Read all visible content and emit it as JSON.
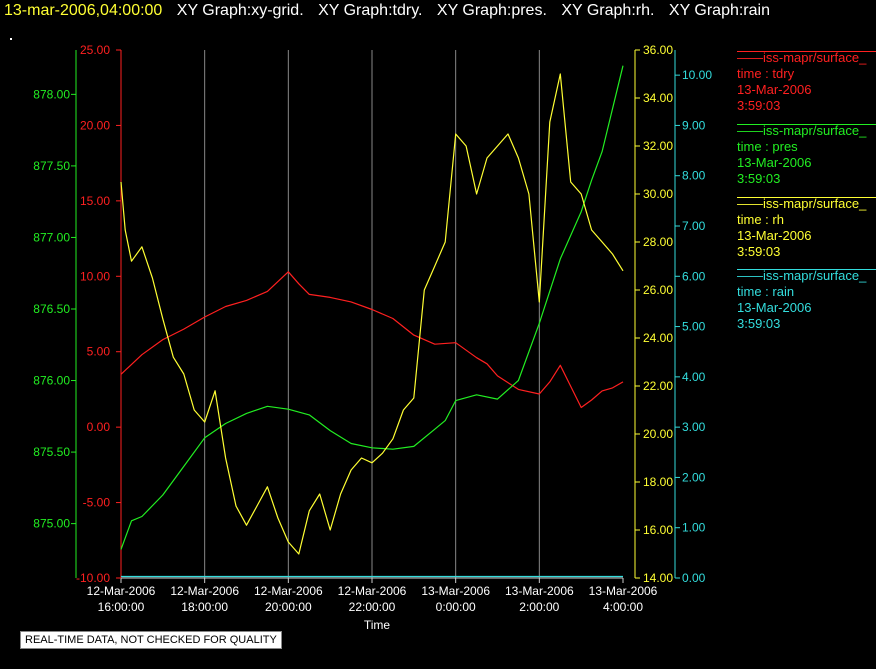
{
  "header": {
    "timestamp": "13-mar-2006,04:00:00",
    "graphs": [
      "XY Graph:xy-grid.",
      "XY Graph:tdry.",
      "XY Graph:pres.",
      "XY Graph:rh.",
      "XY Graph:rain"
    ]
  },
  "legend": [
    {
      "name": "iss-mapr/surface_",
      "var": "time : tdry",
      "date": "13-Mar-2006",
      "time": "3:59:03",
      "color": "#ff2020"
    },
    {
      "name": "iss-mapr/surface_",
      "var": "time : pres",
      "date": "13-Mar-2006",
      "time": "3:59:03",
      "color": "#22ee22"
    },
    {
      "name": "iss-mapr/surface_",
      "var": "time : rh",
      "date": "13-Mar-2006",
      "time": "3:59:03",
      "color": "#ffff33"
    },
    {
      "name": "iss-mapr/surface_",
      "var": "time : rain",
      "date": "13-Mar-2006",
      "time": "3:59:03",
      "color": "#33dddd"
    }
  ],
  "quality_note": "REAL-TIME DATA, NOT CHECKED FOR QUALITY",
  "chart_data": {
    "type": "line",
    "xlabel": "Time",
    "x_ticks": [
      {
        "date": "12-Mar-2006",
        "time": "16:00:00"
      },
      {
        "date": "12-Mar-2006",
        "time": "18:00:00"
      },
      {
        "date": "12-Mar-2006",
        "time": "20:00:00"
      },
      {
        "date": "12-Mar-2006",
        "time": "22:00:00"
      },
      {
        "date": "13-Mar-2006",
        "time": "0:00:00"
      },
      {
        "date": "13-Mar-2006",
        "time": "2:00:00"
      },
      {
        "date": "13-Mar-2006",
        "time": "4:00:00"
      }
    ],
    "xlim_hours": [
      0,
      12
    ],
    "grid": "vertical",
    "axes": {
      "tdry": {
        "color": "#ff2020",
        "ylim": [
          -10,
          25
        ],
        "ticks": [
          "-10.00",
          "-5.00",
          "0.00",
          "5.00",
          "10.00",
          "15.00",
          "20.00",
          "25.00"
        ]
      },
      "pres": {
        "color": "#22ee22",
        "ylim": [
          874.62,
          878.31
        ],
        "ticks": [
          "875.00",
          "875.50",
          "876.00",
          "876.50",
          "877.00",
          "877.50",
          "878.00"
        ]
      },
      "rh": {
        "color": "#ffff33",
        "ylim": [
          14,
          36
        ],
        "ticks": [
          "14.00",
          "16.00",
          "18.00",
          "20.00",
          "22.00",
          "24.00",
          "26.00",
          "28.00",
          "30.00",
          "32.00",
          "34.00",
          "36.00"
        ]
      },
      "rain": {
        "color": "#33dddd",
        "ylim": [
          0,
          10.5
        ],
        "ticks": [
          "0.00",
          "1.00",
          "2.00",
          "3.00",
          "4.00",
          "5.00",
          "6.00",
          "7.00",
          "8.00",
          "9.00",
          "10.00"
        ]
      }
    },
    "series": [
      {
        "name": "tdry",
        "axis": "tdry",
        "x": [
          0,
          0.5,
          1,
          1.5,
          2,
          2.5,
          3,
          3.5,
          4,
          4.25,
          4.5,
          5,
          5.5,
          6,
          6.5,
          7,
          7.5,
          8,
          8.5,
          8.75,
          9,
          9.5,
          10,
          10.25,
          10.5,
          11,
          11.25,
          11.5,
          11.75,
          12
        ],
        "y": [
          3.5,
          4.8,
          5.8,
          6.5,
          7.3,
          8.0,
          8.4,
          9.0,
          10.3,
          9.5,
          8.8,
          8.6,
          8.3,
          7.8,
          7.2,
          6.1,
          5.5,
          5.6,
          4.6,
          4.2,
          3.4,
          2.5,
          2.2,
          3.0,
          4.1,
          1.3,
          1.8,
          2.4,
          2.6,
          3.0
        ]
      },
      {
        "name": "pres",
        "axis": "pres",
        "x": [
          0,
          0.25,
          0.5,
          1,
          1.5,
          2,
          2.5,
          3,
          3.5,
          4,
          4.5,
          5,
          5.5,
          6,
          6.5,
          7,
          7.5,
          7.75,
          8,
          8.5,
          9,
          9.5,
          10,
          10.5,
          11,
          11.25,
          11.5,
          12
        ],
        "y": [
          874.82,
          875.02,
          875.05,
          875.2,
          875.4,
          875.6,
          875.7,
          875.77,
          875.82,
          875.8,
          875.76,
          875.65,
          875.56,
          875.53,
          875.52,
          875.54,
          875.66,
          875.72,
          875.86,
          875.9,
          875.87,
          876.0,
          876.4,
          876.85,
          877.18,
          877.4,
          877.6,
          878.2
        ]
      },
      {
        "name": "rh",
        "axis": "rh",
        "x": [
          0,
          0.1,
          0.25,
          0.5,
          0.75,
          1,
          1.25,
          1.5,
          1.75,
          2,
          2.25,
          2.5,
          2.75,
          3,
          3.25,
          3.5,
          3.75,
          4,
          4.25,
          4.5,
          4.75,
          5,
          5.25,
          5.5,
          5.75,
          6,
          6.25,
          6.5,
          6.75,
          7,
          7.25,
          7.5,
          7.75,
          8,
          8.25,
          8.5,
          8.75,
          9,
          9.25,
          9.5,
          9.75,
          10,
          10.25,
          10.5,
          10.75,
          11,
          11.25,
          11.5,
          11.75,
          12
        ],
        "y": [
          30.5,
          28.5,
          27.2,
          27.8,
          26.5,
          24.8,
          23.2,
          22.5,
          21.0,
          20.5,
          21.8,
          19.0,
          17.0,
          16.2,
          17.0,
          17.8,
          16.5,
          15.5,
          15.0,
          16.8,
          17.5,
          16.0,
          17.5,
          18.5,
          19.0,
          18.8,
          19.2,
          19.8,
          21.0,
          21.5,
          26.0,
          27.0,
          28.0,
          32.5,
          32.0,
          30.0,
          31.5,
          32.0,
          32.5,
          31.5,
          30.0,
          25.5,
          33.0,
          35.0,
          30.5,
          30.0,
          28.5,
          28.0,
          27.5,
          26.8
        ]
      },
      {
        "name": "rain",
        "axis": "rain",
        "x": [
          0,
          12
        ],
        "y": [
          0.03,
          0.03
        ]
      }
    ]
  }
}
